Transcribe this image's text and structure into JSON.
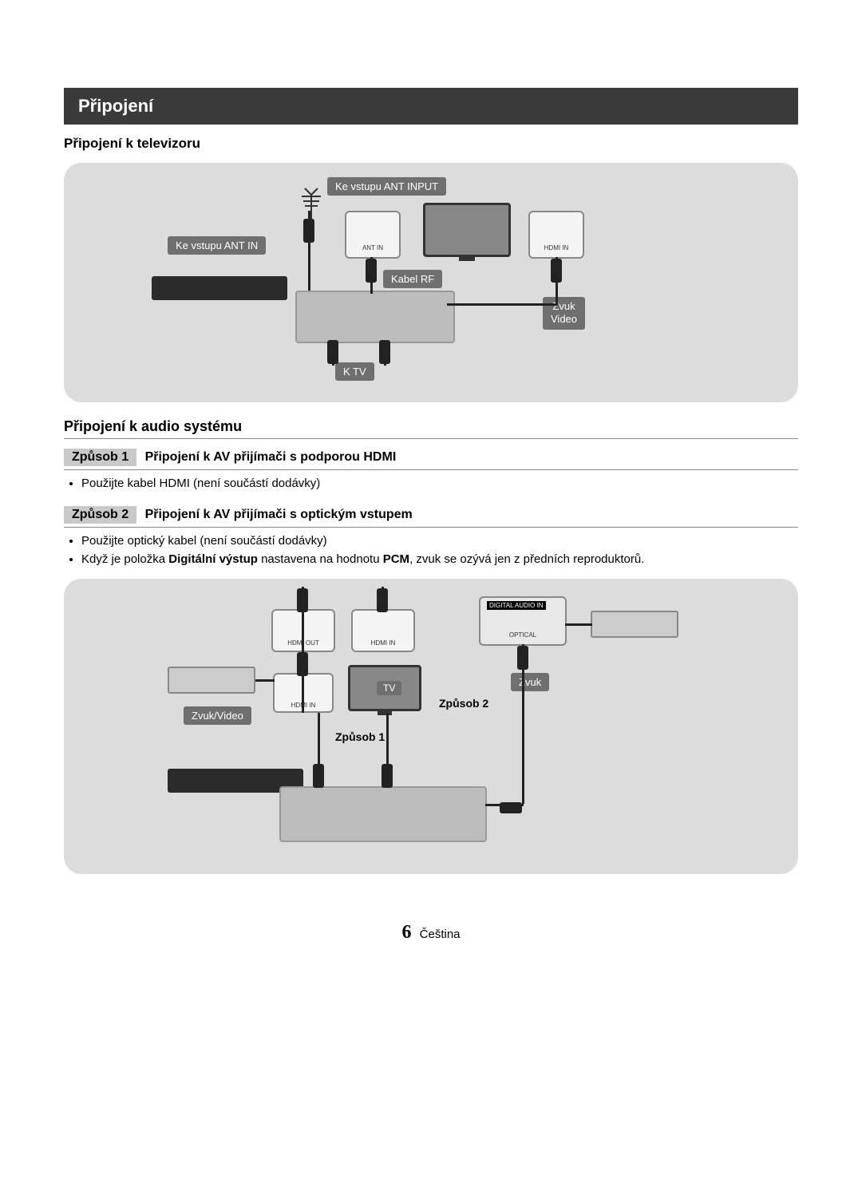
{
  "header": {
    "title": "Připojení"
  },
  "section1": {
    "heading": "Připojení k televizoru",
    "diagram": {
      "labels": {
        "ant_input": "Ke vstupu ANT INPUT",
        "ant_in": "Ke vstupu ANT IN",
        "rf_cable": "Kabel RF",
        "to_tv": "K TV",
        "zvuk": "Zvuk",
        "video": "Video",
        "tv": "TV",
        "port_ant": "ANT IN",
        "port_hdmi": "HDMI IN"
      },
      "colors": {
        "panel_bg": "#dcdcdc",
        "label_bg": "#6f6f6f",
        "label_fg": "#ffffff",
        "device_dark": "#2a2a2a",
        "device_light": "#cccccc",
        "cable": "#222222"
      }
    }
  },
  "section2": {
    "heading": "Připojení k audio systému",
    "method1": {
      "chip": "Způsob 1",
      "title": "Připojení k AV přijímači s podporou HDMI",
      "bullets": [
        "Použijte kabel HDMI (není součástí dodávky)"
      ]
    },
    "method2": {
      "chip": "Způsob 2",
      "title": "Připojení k AV přijímači s optickým vstupem",
      "bullets": [
        "Použijte optický kabel (není součástí dodávky)",
        "Když je položka <b>Digitální výstup</b> nastavena na hodnotu <b>PCM</b>, zvuk se ozývá jen z předních reproduktorů."
      ]
    },
    "diagram": {
      "labels": {
        "zvuk_video": "Zvuk/Video",
        "zvuk": "Zvuk",
        "method1": "Způsob 1",
        "method2": "Způsob 2",
        "tv": "TV",
        "hdmi_out": "HDMI OUT",
        "hdmi_in": "HDMI IN",
        "digital_audio": "DIGITAL AUDIO IN",
        "optical": "OPTICAL"
      }
    }
  },
  "footer": {
    "page_number": "6",
    "lang": "Čeština"
  }
}
